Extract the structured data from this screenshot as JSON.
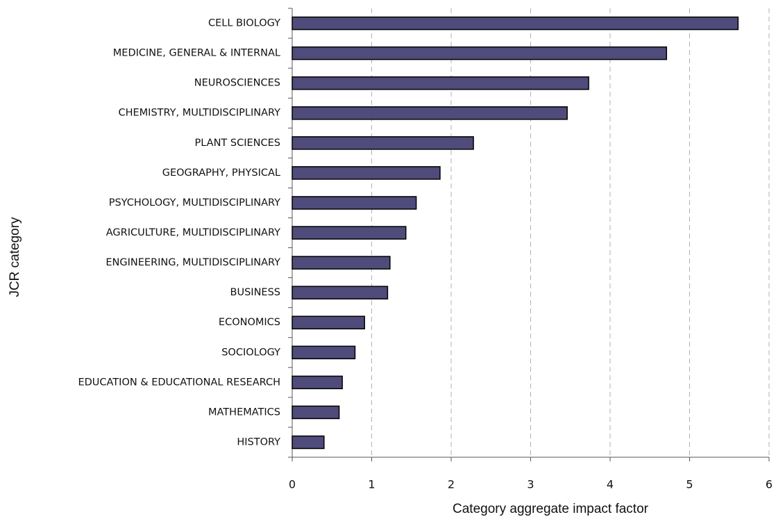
{
  "chart_data": {
    "type": "bar",
    "orientation": "horizontal",
    "categories": [
      "CELL BIOLOGY",
      "MEDICINE, GENERAL & INTERNAL",
      "NEUROSCIENCES",
      "CHEMISTRY, MULTIDISCIPLINARY",
      "PLANT SCIENCES",
      "GEOGRAPHY, PHYSICAL",
      "PSYCHOLOGY, MULTIDISCIPLINARY",
      "AGRICULTURE, MULTIDISCIPLINARY",
      "ENGINEERING, MULTIDISCIPLINARY",
      "BUSINESS",
      "ECONOMICS",
      "SOCIOLOGY",
      "EDUCATION & EDUCATIONAL RESEARCH",
      "MATHEMATICS",
      "HISTORY"
    ],
    "values": [
      5.61,
      4.71,
      3.73,
      3.46,
      2.28,
      1.86,
      1.56,
      1.43,
      1.23,
      1.2,
      0.91,
      0.79,
      0.63,
      0.59,
      0.4
    ],
    "color": "#4f4b7a",
    "xlim": [
      0,
      6
    ],
    "xticks": [
      0,
      1,
      2,
      3,
      4,
      5,
      6
    ],
    "grid": true,
    "xlabel": "Category aggregate impact factor",
    "ylabel": "JCR category"
  }
}
